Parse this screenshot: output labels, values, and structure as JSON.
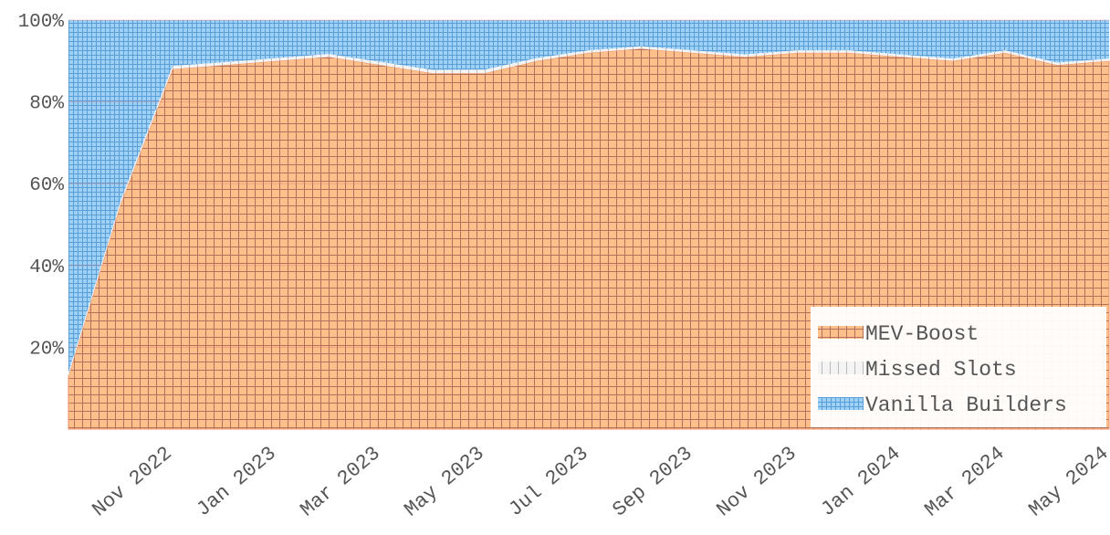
{
  "chart_data": {
    "type": "stacked_area",
    "x": [
      "2022-09",
      "2022-10",
      "2022-11",
      "2022-12",
      "2023-01",
      "2023-02",
      "2023-03",
      "2023-04",
      "2023-05",
      "2023-06",
      "2023-07",
      "2023-08",
      "2023-09",
      "2023-10",
      "2023-11",
      "2023-12",
      "2024-01",
      "2024-02",
      "2024-03",
      "2024-04",
      "2024-05"
    ],
    "xlim": [
      "2022-09",
      "2024-05"
    ],
    "xticks": [
      {
        "value": "2022-11",
        "label": "Nov 2022"
      },
      {
        "value": "2023-01",
        "label": "Jan 2023"
      },
      {
        "value": "2023-03",
        "label": "Mar 2023"
      },
      {
        "value": "2023-05",
        "label": "May 2023"
      },
      {
        "value": "2023-07",
        "label": "Jul 2023"
      },
      {
        "value": "2023-09",
        "label": "Sep 2023"
      },
      {
        "value": "2023-11",
        "label": "Nov 2023"
      },
      {
        "value": "2024-01",
        "label": "Jan 2024"
      },
      {
        "value": "2024-03",
        "label": "Mar 2024"
      },
      {
        "value": "2024-05",
        "label": "May 2024"
      }
    ],
    "ylim": [
      0,
      100
    ],
    "yticks": [
      {
        "value": 20,
        "label": "20%"
      },
      {
        "value": 40,
        "label": "40%"
      },
      {
        "value": 60,
        "label": "60%"
      },
      {
        "value": 80,
        "label": "80%"
      },
      {
        "value": 100,
        "label": "100%"
      }
    ],
    "series": [
      {
        "name": "MEV-Boost",
        "color": "#fdc08a",
        "values": [
          13,
          55,
          88,
          89,
          90,
          91,
          89,
          87,
          87,
          90,
          92,
          93,
          92,
          91,
          92,
          92,
          91,
          90,
          92,
          89,
          90
        ]
      },
      {
        "name": "Missed Slots",
        "color": "#f4f4f4",
        "values": [
          0.8,
          0.8,
          0.8,
          0.7,
          0.7,
          0.7,
          0.8,
          0.8,
          0.9,
          0.7,
          0.6,
          0.6,
          0.6,
          0.6,
          0.6,
          0.6,
          0.6,
          0.6,
          0.6,
          0.6,
          0.6
        ]
      },
      {
        "name": "Vanilla Builders",
        "color": "#9fd0f5",
        "values": [
          86.2,
          44.2,
          11.2,
          10.3,
          9.3,
          8.3,
          10.2,
          12.2,
          12.1,
          9.3,
          7.4,
          6.4,
          7.4,
          8.4,
          7.4,
          7.4,
          8.4,
          9.4,
          7.4,
          10.4,
          9.4
        ]
      }
    ],
    "legend": "lower right",
    "grid": true
  }
}
